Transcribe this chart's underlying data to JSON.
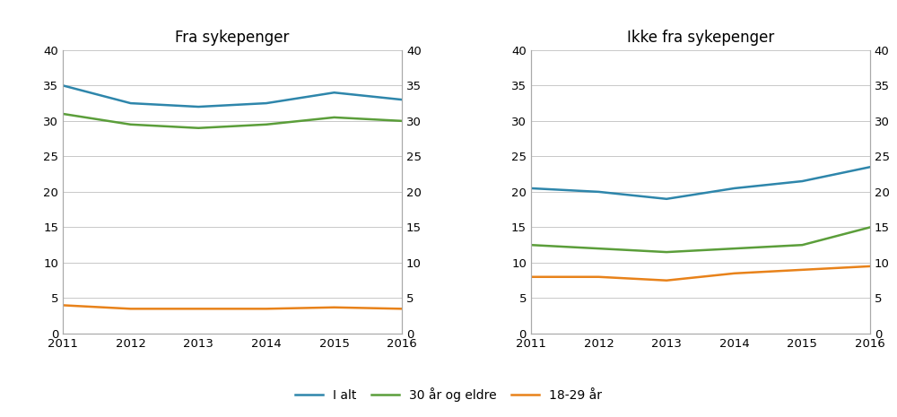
{
  "years": [
    2011,
    2012,
    2013,
    2014,
    2015,
    2016
  ],
  "fra_sykepenger": {
    "title": "Fra sykepenger",
    "i_alt": [
      35.0,
      32.5,
      32.0,
      32.5,
      34.0,
      33.0
    ],
    "elder": [
      31.0,
      29.5,
      29.0,
      29.5,
      30.5,
      30.0
    ],
    "young": [
      4.0,
      3.5,
      3.5,
      3.5,
      3.7,
      3.5
    ]
  },
  "ikke_fra_sykepenger": {
    "title": "Ikke fra sykepenger",
    "i_alt": [
      20.5,
      20.0,
      19.0,
      20.5,
      21.5,
      23.5
    ],
    "elder": [
      12.5,
      12.0,
      11.5,
      12.0,
      12.5,
      15.0
    ],
    "young": [
      8.0,
      8.0,
      7.5,
      8.5,
      9.0,
      9.5
    ]
  },
  "colors": {
    "i_alt": "#2E86AB",
    "elder": "#5B9E3A",
    "young": "#E8821A"
  },
  "legend_labels": [
    "I alt",
    "30 år og eldre",
    "18-29 år"
  ],
  "ylim": [
    0,
    40
  ],
  "yticks": [
    0,
    5,
    10,
    15,
    20,
    25,
    30,
    35,
    40
  ],
  "line_width": 1.8,
  "bg_color": "#ffffff",
  "grid_color": "#c8c8c8",
  "spine_color": "#aaaaaa",
  "title_fontsize": 12,
  "tick_fontsize": 9.5,
  "legend_fontsize": 10
}
